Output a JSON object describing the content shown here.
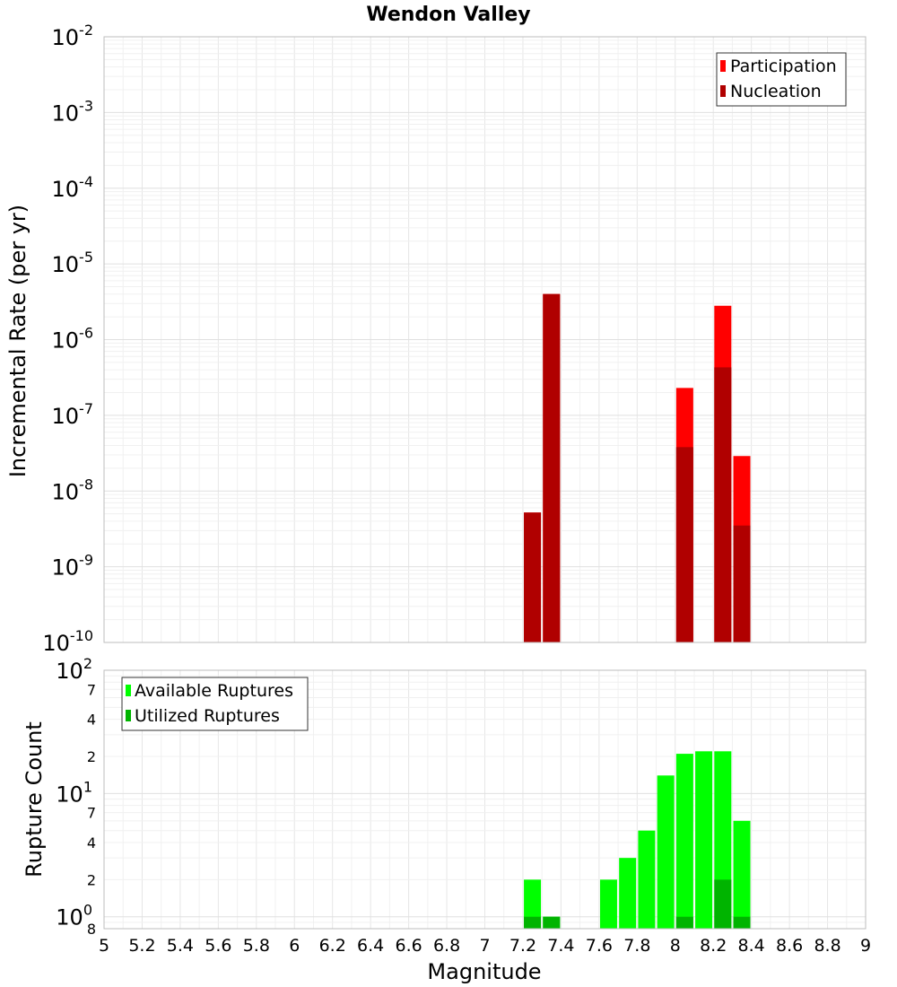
{
  "chart_data": [
    {
      "type": "bar",
      "title": "Wendon Valley",
      "ylabel": "Incremental Rate (per yr)",
      "y_scale": "log",
      "ylim": [
        1e-10,
        0.01
      ],
      "xlim": [
        5,
        9
      ],
      "grid": true,
      "legend_position": "top-right",
      "y_tick_exponents": [
        "-2",
        "-3",
        "-4",
        "-5",
        "-6",
        "-7",
        "-8",
        "-9",
        "-10"
      ],
      "y_tick_base": "10",
      "series": [
        {
          "name": "Participation",
          "color": "#ff0000",
          "points": [
            {
              "x": 7.25,
              "y": 5.2e-09
            },
            {
              "x": 7.35,
              "y": 4e-06
            },
            {
              "x": 8.05,
              "y": 2.3e-07
            },
            {
              "x": 8.25,
              "y": 2.8e-06
            },
            {
              "x": 8.35,
              "y": 2.9e-08
            }
          ]
        },
        {
          "name": "Nucleation",
          "color": "#b00000",
          "points": [
            {
              "x": 7.25,
              "y": 5.2e-09
            },
            {
              "x": 7.35,
              "y": 4e-06
            },
            {
              "x": 8.05,
              "y": 3.8e-08
            },
            {
              "x": 8.25,
              "y": 4.3e-07
            },
            {
              "x": 8.35,
              "y": 3.5e-09
            }
          ]
        }
      ]
    },
    {
      "type": "bar",
      "ylabel": "Rupture Count",
      "xlabel": "Magnitude",
      "y_scale": "log",
      "ylim": [
        0.8,
        100
      ],
      "xlim": [
        5,
        9
      ],
      "grid": true,
      "legend_position": "top-left",
      "x_ticks": [
        "5",
        "5.2",
        "5.4",
        "5.6",
        "5.8",
        "6",
        "6.2",
        "6.4",
        "6.6",
        "6.8",
        "7",
        "7.2",
        "7.4",
        "7.6",
        "7.8",
        "8",
        "8.2",
        "8.4",
        "8.6",
        "8.8",
        "9"
      ],
      "y_major_ticks": [
        {
          "value": 100,
          "base": "10",
          "exp": "2"
        },
        {
          "value": 10,
          "base": "10",
          "exp": "1"
        },
        {
          "value": 1,
          "base": "10",
          "exp": "0"
        }
      ],
      "y_minor_ticks": [
        {
          "value": 70,
          "label": "7"
        },
        {
          "value": 40,
          "label": "4"
        },
        {
          "value": 20,
          "label": "2"
        },
        {
          "value": 7,
          "label": "7"
        },
        {
          "value": 4,
          "label": "4"
        },
        {
          "value": 2,
          "label": "2"
        },
        {
          "value": 0.8,
          "label": "8"
        }
      ],
      "series": [
        {
          "name": "Available Ruptures",
          "color": "#00ff00",
          "points": [
            {
              "x": 7.25,
              "y": 2
            },
            {
              "x": 7.35,
              "y": 1
            },
            {
              "x": 7.65,
              "y": 2
            },
            {
              "x": 7.75,
              "y": 3
            },
            {
              "x": 7.85,
              "y": 5
            },
            {
              "x": 7.95,
              "y": 14
            },
            {
              "x": 8.05,
              "y": 21
            },
            {
              "x": 8.15,
              "y": 22
            },
            {
              "x": 8.25,
              "y": 22
            },
            {
              "x": 8.35,
              "y": 6
            }
          ]
        },
        {
          "name": "Utilized Ruptures",
          "color": "#00b400",
          "points": [
            {
              "x": 7.25,
              "y": 1
            },
            {
              "x": 7.35,
              "y": 1
            },
            {
              "x": 8.05,
              "y": 1
            },
            {
              "x": 8.25,
              "y": 2
            },
            {
              "x": 8.35,
              "y": 1
            }
          ]
        }
      ]
    }
  ]
}
